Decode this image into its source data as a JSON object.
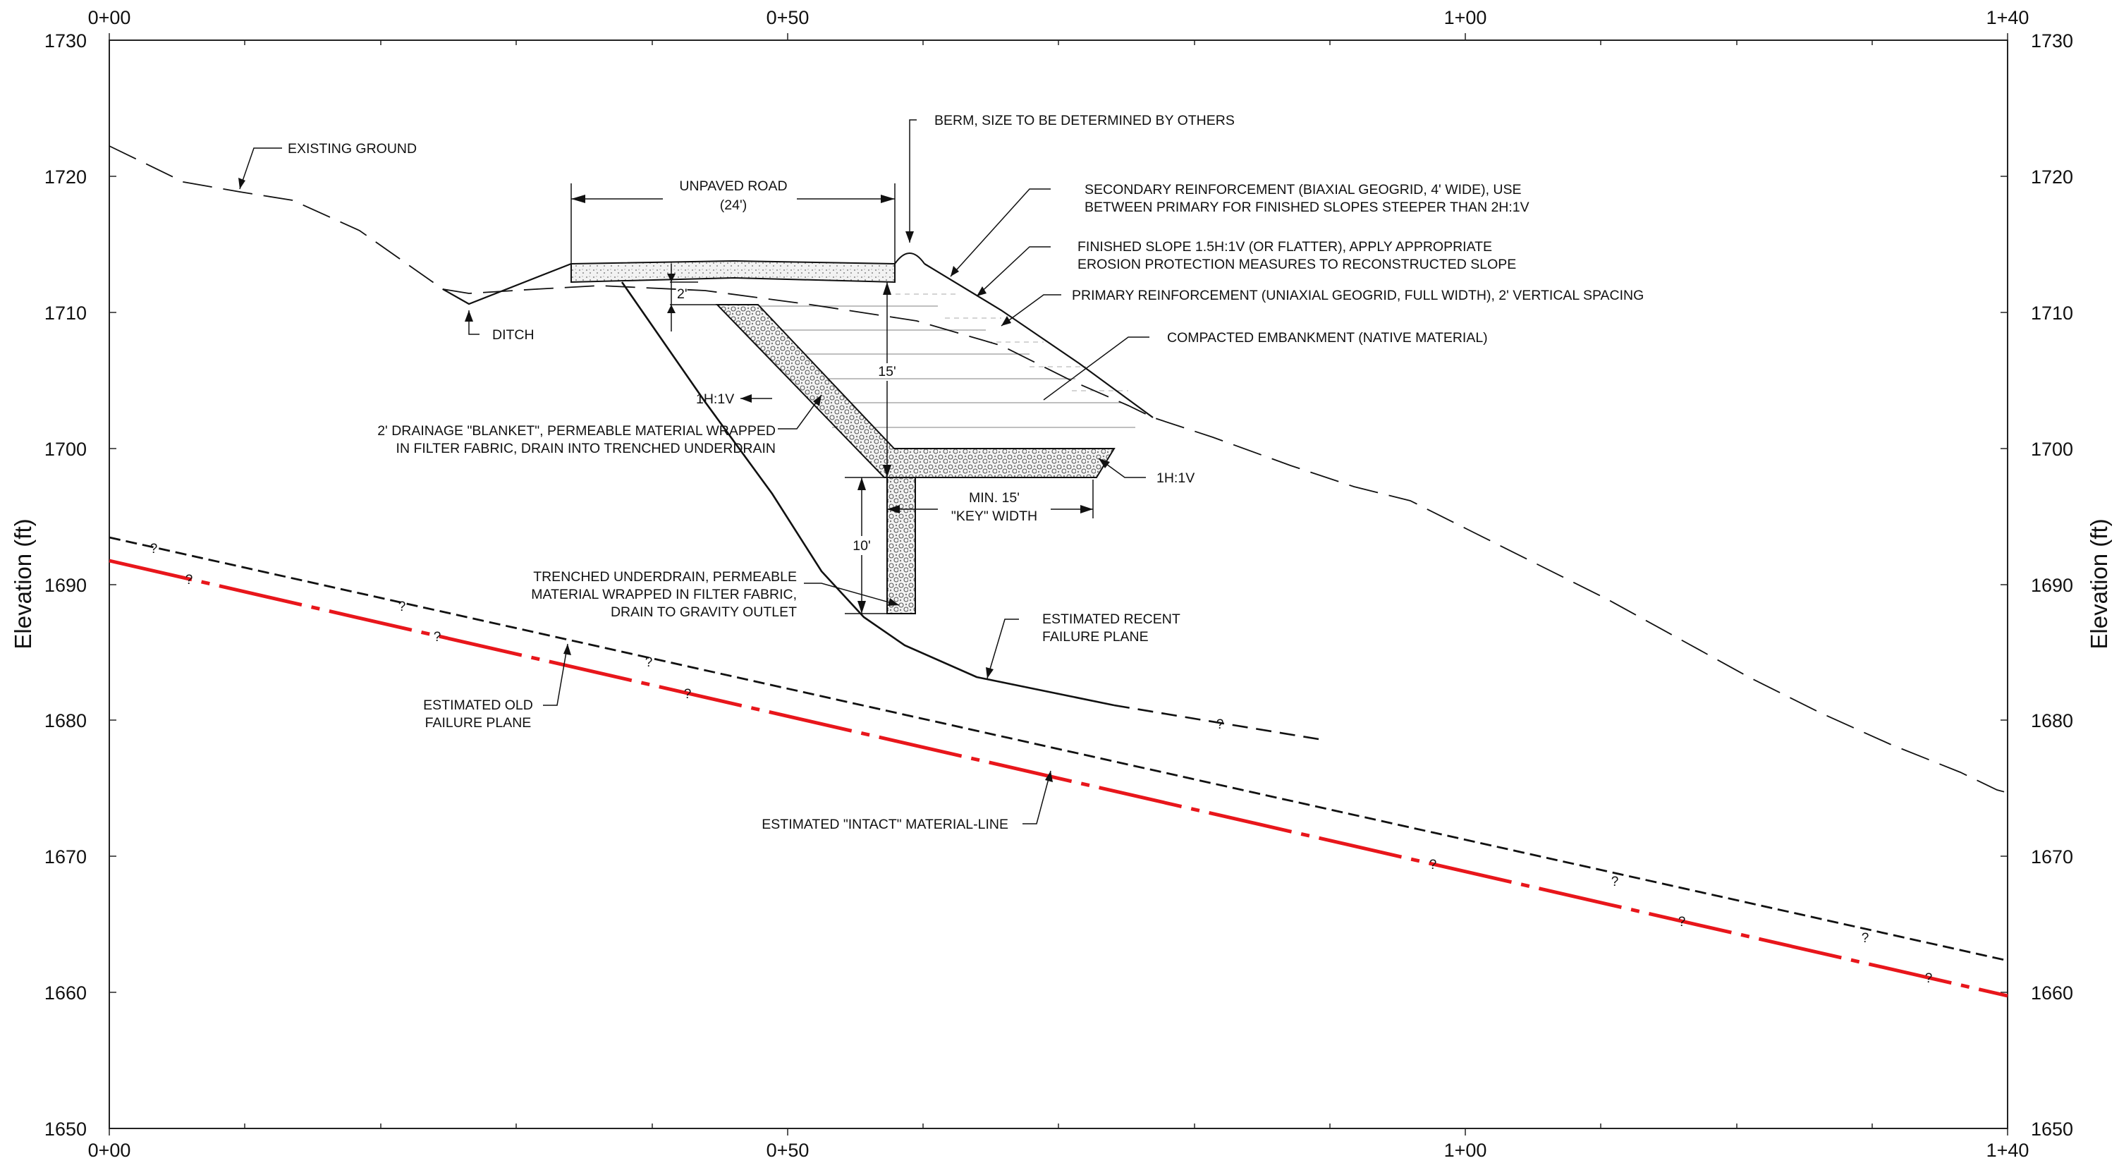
{
  "axes": {
    "station_ticks": [
      "0+00",
      "0+50",
      "1+00",
      "1+40"
    ],
    "elevation_ticks": [
      "1730",
      "1720",
      "1710",
      "1700",
      "1690",
      "1680",
      "1670",
      "1660",
      "1650"
    ],
    "ylabel_left": "Elevation (ft)",
    "ylabel_right": "Elevation (ft)"
  },
  "annotations": {
    "existing_ground": "EXISTING GROUND",
    "ditch": "DITCH",
    "berm": "BERM, SIZE TO BE DETERMINED BY OTHERS",
    "unpaved_road": "UNPAVED ROAD",
    "unpaved_road_width": "(24')",
    "secondary_reinf_1": "SECONDARY REINFORCEMENT (BIAXIAL GEOGRID, 4' WIDE), USE",
    "secondary_reinf_2": "BETWEEN PRIMARY FOR FINISHED SLOPES STEEPER THAN 2H:1V",
    "finished_slope_1": "FINISHED SLOPE 1.5H:1V (OR FLATTER), APPLY APPROPRIATE",
    "finished_slope_2": "EROSION PROTECTION MEASURES TO RECONSTRUCTED SLOPE",
    "primary_reinf": "PRIMARY REINFORCEMENT (UNIAXIAL GEOGRID, FULL WIDTH), 2' VERTICAL SPACING",
    "compacted_embankment": "COMPACTED EMBANKMENT (NATIVE MATERIAL)",
    "dim_2ft": "2'",
    "dim_15ft": "15'",
    "slope_1h1v_upper": "1H:1V",
    "slope_1h1v_lower": "1H:1V",
    "drainage_blanket_1": "2' DRAINAGE \"BLANKET\", PERMEABLE MATERIAL WRAPPED",
    "drainage_blanket_2": "IN FILTER FABRIC, DRAIN INTO TRENCHED UNDERDRAIN",
    "key_width_1": "MIN. 15'",
    "key_width_2": "\"KEY\" WIDTH",
    "dim_10ft": "10'",
    "underdrain_1": "TRENCHED UNDERDRAIN, PERMEABLE",
    "underdrain_2": "MATERIAL WRAPPED IN FILTER FABRIC,",
    "underdrain_3": "DRAIN TO GRAVITY OUTLET",
    "recent_failure_1": "ESTIMATED RECENT",
    "recent_failure_2": "FAILURE PLANE",
    "old_failure_1": "ESTIMATED OLD",
    "old_failure_2": "FAILURE PLANE",
    "intact_line": "ESTIMATED \"INTACT\" MATERIAL-LINE",
    "question_mark": "?"
  },
  "colors": {
    "linework": "#111111",
    "intact_line": "#e8161b",
    "grid_light": "#bbbbbb"
  }
}
